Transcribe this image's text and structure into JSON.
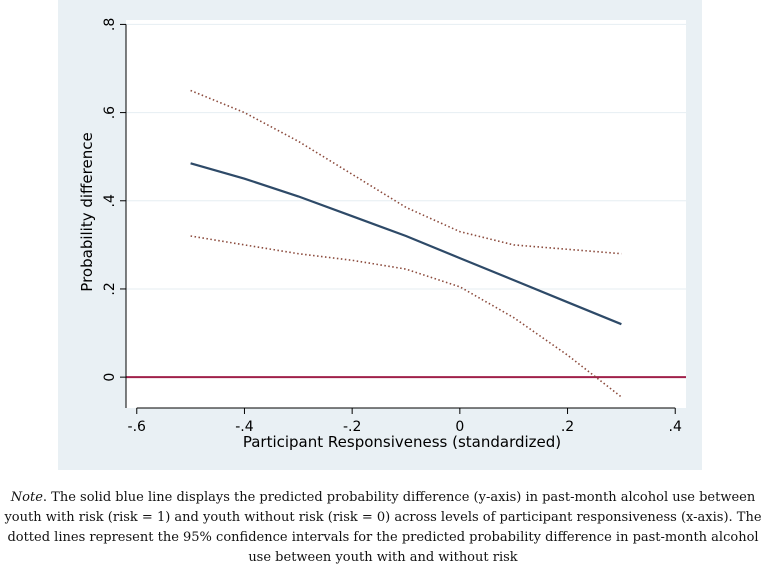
{
  "chart_data": {
    "type": "line",
    "title": "",
    "xlabel": "Participant Responsiveness (standardized)",
    "ylabel": "Probability difference",
    "xlim": [
      -0.62,
      0.42
    ],
    "ylim": [
      -0.07,
      0.81
    ],
    "x_ticks": [
      -0.6,
      -0.4,
      -0.2,
      0,
      0.2,
      0.4
    ],
    "x_tick_labels": [
      "-.6",
      "-.4",
      "-.2",
      "0",
      ".2",
      ".4"
    ],
    "y_ticks": [
      0,
      0.2,
      0.4,
      0.6,
      0.8
    ],
    "y_tick_labels": [
      "0",
      ".2",
      ".4",
      ".6",
      ".8"
    ],
    "grid": "horizontal",
    "reference_line": {
      "y": 0,
      "color": "#a0204a"
    },
    "series": [
      {
        "role": "estimate",
        "style": "solid",
        "color": "#2e4a68",
        "x": [
          -0.5,
          -0.4,
          -0.3,
          -0.2,
          -0.1,
          0,
          0.1,
          0.2,
          0.3
        ],
        "y": [
          0.485,
          0.45,
          0.41,
          0.365,
          0.32,
          0.27,
          0.22,
          0.17,
          0.12
        ]
      },
      {
        "role": "upper-ci",
        "style": "dotted",
        "color": "#8b4a3c",
        "x": [
          -0.5,
          -0.4,
          -0.3,
          -0.2,
          -0.1,
          0,
          0.1,
          0.2,
          0.3
        ],
        "y": [
          0.65,
          0.6,
          0.535,
          0.46,
          0.385,
          0.33,
          0.3,
          0.29,
          0.28
        ]
      },
      {
        "role": "lower-ci",
        "style": "dotted",
        "color": "#8b4a3c",
        "x": [
          -0.5,
          -0.4,
          -0.3,
          -0.2,
          -0.1,
          0,
          0.1,
          0.2,
          0.3
        ],
        "y": [
          0.32,
          0.3,
          0.28,
          0.265,
          0.245,
          0.205,
          0.135,
          0.05,
          -0.045
        ]
      }
    ]
  },
  "caption": {
    "note_label": "Note",
    "text": ". The solid blue line displays the predicted probability difference (y-axis) in past-month alcohol use between youth with risk (risk = 1) and youth without risk (risk = 0) across levels of participant responsiveness (x-axis). The dotted lines represent the 95% confidence intervals for the predicted probability difference in past-month alcohol use between youth with and without risk"
  }
}
